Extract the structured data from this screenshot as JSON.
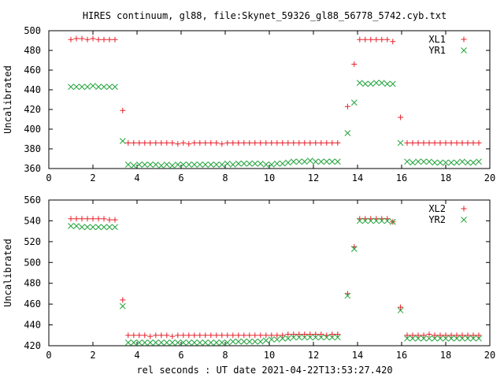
{
  "page": {
    "title": "HIRES continuum, gl88, file:Skynet_59326_gl88_56778_5742.cyb.txt",
    "xlabel": "rel seconds : UT date 2021-04-22T13:53:27.420"
  },
  "colors": {
    "red": "#e8202a",
    "green": "#21a33a",
    "axis": "#000000"
  },
  "chart_data": [
    {
      "type": "scatter",
      "ylabel": "Uncalibrated",
      "xlim": [
        0,
        20
      ],
      "ylim": [
        360,
        500
      ],
      "xticks": [
        "0",
        "2",
        "4",
        "6",
        "8",
        "10",
        "12",
        "14",
        "16",
        "18",
        "20"
      ],
      "yticks": [
        "360",
        "380",
        "400",
        "420",
        "440",
        "460",
        "480",
        "500"
      ],
      "legend_position": "top-right",
      "series": [
        {
          "name": "XL1",
          "marker": "plus",
          "color": "#e8202a",
          "x": [
            1.0,
            1.25,
            1.5,
            1.75,
            2.0,
            2.25,
            2.5,
            2.75,
            3.0,
            3.35,
            3.6,
            3.85,
            4.1,
            4.35,
            4.6,
            4.85,
            5.1,
            5.35,
            5.6,
            5.85,
            6.1,
            6.35,
            6.6,
            6.85,
            7.1,
            7.35,
            7.6,
            7.85,
            8.1,
            8.35,
            8.6,
            8.85,
            9.1,
            9.35,
            9.6,
            9.85,
            10.1,
            10.35,
            10.6,
            10.85,
            11.1,
            11.35,
            11.6,
            11.85,
            12.1,
            12.35,
            12.6,
            12.85,
            13.1,
            13.55,
            13.85,
            14.1,
            14.35,
            14.6,
            14.85,
            15.1,
            15.35,
            15.6,
            15.95,
            16.25,
            16.5,
            16.75,
            17.0,
            17.25,
            17.5,
            17.75,
            18.0,
            18.25,
            18.5,
            18.75,
            19.0,
            19.25,
            19.5
          ],
          "y": [
            491,
            492,
            492,
            491,
            492,
            491,
            491,
            491,
            491,
            419,
            386,
            386,
            386,
            386,
            386,
            386,
            386,
            386,
            386,
            385,
            386,
            385,
            386,
            386,
            386,
            386,
            386,
            385,
            386,
            386,
            386,
            386,
            386,
            386,
            386,
            386,
            386,
            386,
            386,
            386,
            386,
            386,
            386,
            386,
            386,
            386,
            386,
            386,
            386,
            423,
            466,
            491,
            491,
            491,
            491,
            491,
            491,
            489,
            412,
            386,
            386,
            386,
            386,
            386,
            386,
            386,
            386,
            386,
            386,
            386,
            386,
            386,
            386
          ]
        },
        {
          "name": "YR1",
          "marker": "cross",
          "color": "#21a33a",
          "x": [
            1.0,
            1.25,
            1.5,
            1.75,
            2.0,
            2.25,
            2.5,
            2.75,
            3.0,
            3.35,
            3.6,
            3.85,
            4.1,
            4.35,
            4.6,
            4.85,
            5.1,
            5.35,
            5.6,
            5.85,
            6.1,
            6.35,
            6.6,
            6.85,
            7.1,
            7.35,
            7.6,
            7.85,
            8.1,
            8.35,
            8.6,
            8.85,
            9.1,
            9.35,
            9.6,
            9.85,
            10.1,
            10.35,
            10.6,
            10.85,
            11.1,
            11.35,
            11.6,
            11.85,
            12.1,
            12.35,
            12.6,
            12.85,
            13.1,
            13.55,
            13.85,
            14.1,
            14.35,
            14.6,
            14.85,
            15.1,
            15.35,
            15.6,
            15.95,
            16.25,
            16.5,
            16.75,
            17.0,
            17.25,
            17.5,
            17.75,
            18.0,
            18.25,
            18.5,
            18.75,
            19.0,
            19.25,
            19.5
          ],
          "y": [
            443,
            443,
            443,
            443,
            444,
            443,
            443,
            443,
            443,
            388,
            364,
            363,
            364,
            364,
            364,
            364,
            363,
            364,
            363,
            364,
            364,
            364,
            364,
            364,
            364,
            364,
            364,
            364,
            365,
            364,
            365,
            365,
            365,
            365,
            365,
            364,
            364,
            365,
            365,
            366,
            367,
            367,
            367,
            368,
            367,
            367,
            367,
            367,
            367,
            396,
            427,
            447,
            446,
            446,
            447,
            447,
            446,
            446,
            386,
            367,
            366,
            367,
            367,
            367,
            366,
            366,
            366,
            366,
            366,
            367,
            366,
            366,
            367
          ]
        }
      ]
    },
    {
      "type": "scatter",
      "ylabel": "Uncalibrated",
      "xlim": [
        0,
        20
      ],
      "ylim": [
        420,
        560
      ],
      "xticks": [
        "0",
        "2",
        "4",
        "6",
        "8",
        "10",
        "12",
        "14",
        "16",
        "18",
        "20"
      ],
      "yticks": [
        "420",
        "440",
        "460",
        "480",
        "500",
        "520",
        "540",
        "560"
      ],
      "legend_position": "top-right",
      "series": [
        {
          "name": "XL2",
          "marker": "plus",
          "color": "#e8202a",
          "x": [
            1.0,
            1.25,
            1.5,
            1.75,
            2.0,
            2.25,
            2.5,
            2.75,
            3.0,
            3.35,
            3.6,
            3.85,
            4.1,
            4.35,
            4.6,
            4.85,
            5.1,
            5.35,
            5.6,
            5.85,
            6.1,
            6.35,
            6.6,
            6.85,
            7.1,
            7.35,
            7.6,
            7.85,
            8.1,
            8.35,
            8.6,
            8.85,
            9.1,
            9.35,
            9.6,
            9.85,
            10.1,
            10.35,
            10.6,
            10.85,
            11.1,
            11.35,
            11.6,
            11.85,
            12.1,
            12.35,
            12.6,
            12.85,
            13.1,
            13.55,
            13.85,
            14.1,
            14.35,
            14.6,
            14.85,
            15.1,
            15.35,
            15.6,
            15.95,
            16.25,
            16.5,
            16.75,
            17.0,
            17.25,
            17.5,
            17.75,
            18.0,
            18.25,
            18.5,
            18.75,
            19.0,
            19.25,
            19.5
          ],
          "y": [
            542,
            542,
            542,
            542,
            542,
            542,
            542,
            541,
            541,
            464,
            430,
            430,
            430,
            430,
            429,
            430,
            430,
            430,
            429,
            430,
            430,
            430,
            430,
            430,
            430,
            430,
            430,
            430,
            430,
            430,
            430,
            430,
            430,
            430,
            430,
            430,
            430,
            430,
            430,
            431,
            431,
            431,
            431,
            431,
            431,
            431,
            430,
            431,
            431,
            470,
            515,
            542,
            542,
            542,
            542,
            542,
            542,
            539,
            457,
            430,
            430,
            430,
            430,
            431,
            430,
            430,
            430,
            430,
            430,
            430,
            430,
            430,
            430
          ]
        },
        {
          "name": "YR2",
          "marker": "cross",
          "color": "#21a33a",
          "x": [
            1.0,
            1.25,
            1.5,
            1.75,
            2.0,
            2.25,
            2.5,
            2.75,
            3.0,
            3.35,
            3.6,
            3.85,
            4.1,
            4.35,
            4.6,
            4.85,
            5.1,
            5.35,
            5.6,
            5.85,
            6.1,
            6.35,
            6.6,
            6.85,
            7.1,
            7.35,
            7.6,
            7.85,
            8.1,
            8.35,
            8.6,
            8.85,
            9.1,
            9.35,
            9.6,
            9.85,
            10.1,
            10.35,
            10.6,
            10.85,
            11.1,
            11.35,
            11.6,
            11.85,
            12.1,
            12.35,
            12.6,
            12.85,
            13.1,
            13.55,
            13.85,
            14.1,
            14.35,
            14.6,
            14.85,
            15.1,
            15.35,
            15.6,
            15.95,
            16.25,
            16.5,
            16.75,
            17.0,
            17.25,
            17.5,
            17.75,
            18.0,
            18.25,
            18.5,
            18.75,
            19.0,
            19.25,
            19.5
          ],
          "y": [
            535,
            535,
            534,
            534,
            534,
            534,
            534,
            534,
            534,
            458,
            423,
            423,
            423,
            423,
            423,
            423,
            423,
            423,
            423,
            423,
            423,
            423,
            423,
            423,
            423,
            423,
            423,
            423,
            423,
            424,
            424,
            424,
            424,
            424,
            424,
            425,
            426,
            426,
            427,
            427,
            428,
            428,
            428,
            428,
            428,
            428,
            428,
            428,
            428,
            468,
            513,
            540,
            540,
            540,
            540,
            540,
            540,
            539,
            454,
            427,
            427,
            427,
            427,
            427,
            427,
            427,
            427,
            427,
            427,
            427,
            427,
            427,
            427
          ]
        }
      ]
    }
  ]
}
